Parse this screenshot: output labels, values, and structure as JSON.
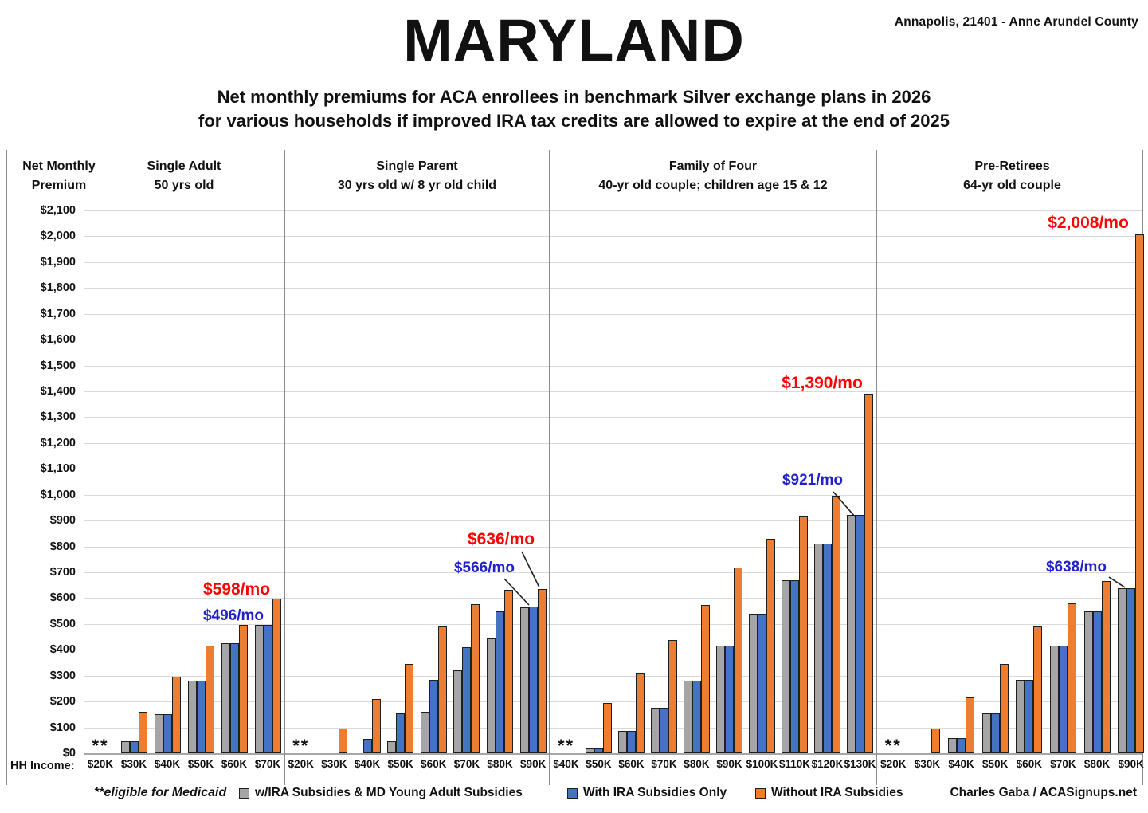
{
  "header": {
    "location": "Annapolis, 21401 - Anne Arundel County",
    "title": "MARYLAND",
    "subtitle_line1": "Net monthly premiums for ACA enrollees in benchmark Silver exchange plans in 2026",
    "subtitle_line2": "for various households if improved IRA tax credits are allowed to expire at the end of 2025"
  },
  "axis_label_line1": "Net Monthly",
  "axis_label_line2": "Premium",
  "hh_income_label": "HH Income:",
  "legend": {
    "medicaid_note": "**eligible for Medicaid",
    "items": [
      {
        "label": "w/IRA Subsidies & MD Young Adult Subsidies",
        "color": "#A5A5A5"
      },
      {
        "label": "With IRA Subsidies Only",
        "color": "#4472C4"
      },
      {
        "label": "Without IRA Subsidies",
        "color": "#ED7D31"
      }
    ],
    "credit": "Charles Gaba / ACASignups.net"
  },
  "chart_data": {
    "type": "bar",
    "title": "MARYLAND — Net monthly premiums for ACA enrollees in benchmark Silver exchange plans in 2026",
    "ylabel": "Net Monthly Premium",
    "xlabel": "HH Income",
    "ylim": [
      0,
      2100
    ],
    "ytick_step": 100,
    "grid": true,
    "ytick_labels": [
      "$0",
      "$100",
      "$200",
      "$300",
      "$400",
      "$500",
      "$600",
      "$700",
      "$800",
      "$900",
      "$1,000",
      "$1,100",
      "$1,200",
      "$1,300",
      "$1,400",
      "$1,500",
      "$1,600",
      "$1,700",
      "$1,800",
      "$1,900",
      "$2,000",
      "$2,100"
    ],
    "medicaid_marker": "**",
    "series_names": [
      "w/IRA Subsidies & MD Young Adult Subsidies",
      "With IRA Subsidies Only",
      "Without IRA Subsidies"
    ],
    "series_colors": {
      "gray": "#A5A5A5",
      "blue": "#4472C4",
      "orange": "#ED7D31"
    },
    "panels": [
      {
        "title_line1": "Single Adult",
        "title_line2": "50 yrs old",
        "incomes": [
          "$20K",
          "$30K",
          "$40K",
          "$50K",
          "$60K",
          "$70K"
        ],
        "medicaid": [
          true,
          false,
          false,
          false,
          false,
          false
        ],
        "values": {
          "gray": [
            null,
            45,
            150,
            280,
            425,
            496
          ],
          "blue": [
            null,
            45,
            150,
            280,
            425,
            496
          ],
          "orange": [
            null,
            160,
            297,
            415,
            497,
            598
          ]
        }
      },
      {
        "title_line1": "Single Parent",
        "title_line2": "30 yrs old w/ 8 yr old child",
        "incomes": [
          "$20K",
          "$30K",
          "$40K",
          "$50K",
          "$60K",
          "$70K",
          "$80K",
          "$90K"
        ],
        "medicaid": [
          true,
          false,
          false,
          false,
          false,
          false,
          false,
          false
        ],
        "values": {
          "gray": [
            null,
            0,
            0,
            45,
            160,
            320,
            445,
            565
          ],
          "blue": [
            null,
            0,
            55,
            155,
            285,
            410,
            548,
            566
          ],
          "orange": [
            null,
            95,
            210,
            345,
            490,
            578,
            633,
            636
          ]
        }
      },
      {
        "title_line1": "Family of Four",
        "title_line2": "40-yr old couple; children age 15 & 12",
        "incomes": [
          "$40K",
          "$50K",
          "$60K",
          "$70K",
          "$80K",
          "$90K",
          "$100K",
          "$110K",
          "$120K",
          "$130K"
        ],
        "medicaid": [
          true,
          false,
          false,
          false,
          false,
          false,
          false,
          false,
          false,
          false
        ],
        "values": {
          "gray": [
            null,
            20,
            85,
            175,
            280,
            415,
            540,
            670,
            810,
            921
          ],
          "blue": [
            null,
            20,
            85,
            175,
            280,
            415,
            540,
            670,
            810,
            921
          ],
          "orange": [
            null,
            193,
            310,
            437,
            575,
            720,
            830,
            915,
            995,
            1390
          ]
        }
      },
      {
        "title_line1": "Pre-Retirees",
        "title_line2": "64-yr old couple",
        "incomes": [
          "$20K",
          "$30K",
          "$40K",
          "$50K",
          "$60K",
          "$70K",
          "$80K",
          "$90K"
        ],
        "medicaid": [
          true,
          false,
          false,
          false,
          false,
          false,
          false,
          false
        ],
        "values": {
          "gray": [
            null,
            0,
            60,
            155,
            285,
            415,
            550,
            638
          ],
          "blue": [
            null,
            0,
            60,
            155,
            285,
            415,
            550,
            638
          ],
          "orange": [
            null,
            95,
            215,
            345,
            490,
            580,
            665,
            2008
          ]
        }
      }
    ],
    "annotations": [
      {
        "text": "$598/mo",
        "color": "#FF0000"
      },
      {
        "text": "$496/mo",
        "color": "#2222CC"
      },
      {
        "text": "$636/mo",
        "color": "#FF0000"
      },
      {
        "text": "$566/mo",
        "color": "#2222CC"
      },
      {
        "text": "$1,390/mo",
        "color": "#FF0000"
      },
      {
        "text": "$921/mo",
        "color": "#2222CC"
      },
      {
        "text": "$2,008/mo",
        "color": "#FF0000"
      },
      {
        "text": "$638/mo",
        "color": "#2222CC"
      }
    ]
  }
}
